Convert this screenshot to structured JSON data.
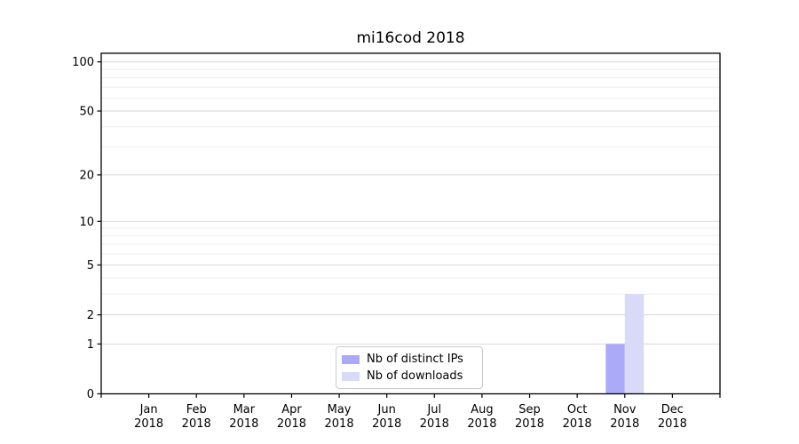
{
  "figure": {
    "title": "mi16cod 2018"
  },
  "legend": {
    "items": [
      {
        "label": "Nb of distinct IPs",
        "color": "#aaaaf8"
      },
      {
        "label": "Nb of downloads",
        "color": "#d9d9f8"
      }
    ]
  },
  "chart_data": {
    "type": "bar",
    "title": "mi16cod 2018",
    "categories": [
      "Jan 2018",
      "Feb 2018",
      "Mar 2018",
      "Apr 2018",
      "May 2018",
      "Jun 2018",
      "Jul 2018",
      "Aug 2018",
      "Sep 2018",
      "Oct 2018",
      "Nov 2018",
      "Dec 2018"
    ],
    "series": [
      {
        "name": "Nb of distinct IPs",
        "color": "#aaaaf8",
        "values": [
          0,
          0,
          0,
          0,
          0,
          0,
          0,
          0,
          0,
          0,
          1,
          0
        ]
      },
      {
        "name": "Nb of downloads",
        "color": "#d9d9f8",
        "values": [
          0,
          0,
          0,
          0,
          0,
          0,
          0,
          0,
          0,
          0,
          3,
          0
        ]
      }
    ],
    "xlabel": "",
    "ylabel": "",
    "y_scale": "log1p",
    "ylim": [
      0,
      113
    ],
    "y_major_ticks": [
      0,
      1,
      2,
      5,
      10,
      20,
      50,
      100
    ],
    "y_minor_gridlines": [
      3,
      4,
      6,
      7,
      8,
      9,
      30,
      40,
      60,
      70,
      80,
      90
    ],
    "grid": true,
    "legend_position": "lower center",
    "colors": {
      "major_grid": "#d9d9d9",
      "minor_grid": "#eeeeee",
      "axis": "#000000",
      "background": "#ffffff"
    }
  }
}
